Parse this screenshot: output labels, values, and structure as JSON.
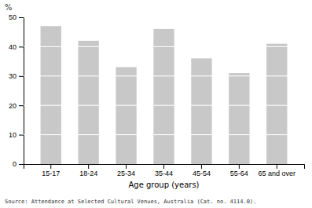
{
  "chart_data": {
    "type": "bar",
    "categories": [
      "15-17",
      "18-24",
      "25-34",
      "35-44",
      "45-54",
      "55-64",
      "65 and over"
    ],
    "values": [
      47,
      42,
      33,
      46,
      36,
      31,
      41
    ],
    "color": "#c8c8c8",
    "xlabel": "Age group (years)",
    "ylabel": "%",
    "annotations": [
      "Source: Attendance at Selected Cultural Venues, Australia (Cat. no.  4114.0)."
    ],
    "ylim": [
      0,
      50
    ],
    "yticks": [
      0,
      10,
      20,
      30,
      40,
      50
    ],
    "grid": true
  }
}
